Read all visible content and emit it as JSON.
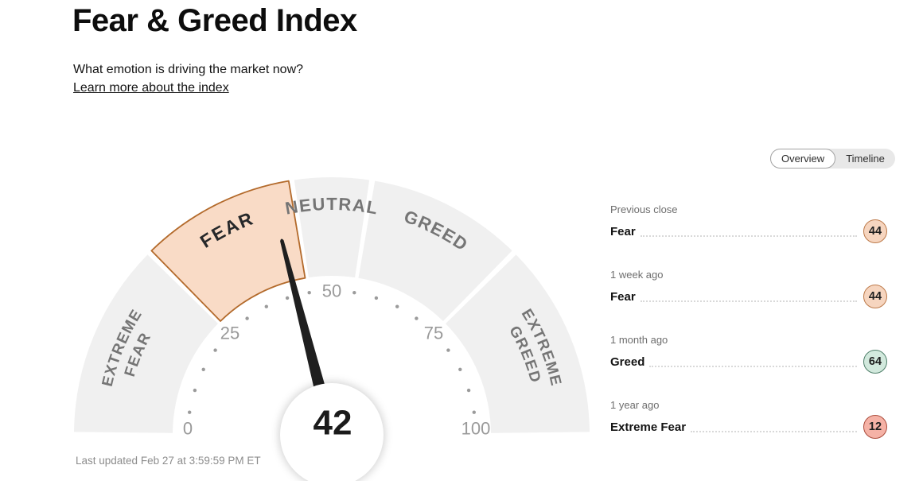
{
  "header": {
    "title": "Fear & Greed Index",
    "subtitle": "What emotion is driving the market now?",
    "link": "Learn more about the index"
  },
  "tabs": {
    "overview": "Overview",
    "timeline": "Timeline",
    "active": "Overview"
  },
  "chart_data": {
    "type": "gauge",
    "title": "Fear & Greed Index",
    "min": 0,
    "max": 100,
    "value": 42,
    "active_segment": "FEAR",
    "tick_values": [
      0,
      25,
      50,
      75,
      100
    ],
    "tick_labels": [
      "0",
      "25",
      "50",
      "75",
      "100"
    ],
    "minor_tick_step": 5,
    "segments": [
      {
        "label": "EXTREME FEAR",
        "lines": [
          "EXTREME",
          "FEAR"
        ],
        "from": 0,
        "to": 25,
        "active": false
      },
      {
        "label": "FEAR",
        "lines": [
          "FEAR"
        ],
        "from": 25,
        "to": 45,
        "active": true
      },
      {
        "label": "NEUTRAL",
        "lines": [
          "NEUTRAL"
        ],
        "from": 45,
        "to": 55,
        "active": false
      },
      {
        "label": "GREED",
        "lines": [
          "GREED"
        ],
        "from": 55,
        "to": 75,
        "active": false
      },
      {
        "label": "EXTREME GREED",
        "lines": [
          "EXTREME",
          "GREED"
        ],
        "from": 75,
        "to": 100,
        "active": false
      }
    ],
    "colors": {
      "segment_fill": "#f0f0f0",
      "active_fill": "#f9dbc6",
      "active_stroke": "#b36a2b",
      "segment_label": "#757575",
      "active_label": "#26282a",
      "tick_label": "#9a9a9a",
      "minor_dot": "#9b9b9b",
      "needle": "#1f1f1f",
      "value_text": "#1b1b1b",
      "center_fill": "#ffffff"
    }
  },
  "history": [
    {
      "period": "Previous close",
      "label": "Fear",
      "value": 44,
      "fill": "#f6d5bf",
      "stroke": "#bd7a4a"
    },
    {
      "period": "1 week ago",
      "label": "Fear",
      "value": 44,
      "fill": "#f6d5bf",
      "stroke": "#bd7a4a"
    },
    {
      "period": "1 month ago",
      "label": "Greed",
      "value": 64,
      "fill": "#d2e9dd",
      "stroke": "#4f7f6a"
    },
    {
      "period": "1 year ago",
      "label": "Extreme Fear",
      "value": 12,
      "fill": "#f5b2a6",
      "stroke": "#ab4c3c"
    }
  ],
  "footer": {
    "last_updated": "Last updated Feb 27 at 3:59:59 PM ET"
  }
}
